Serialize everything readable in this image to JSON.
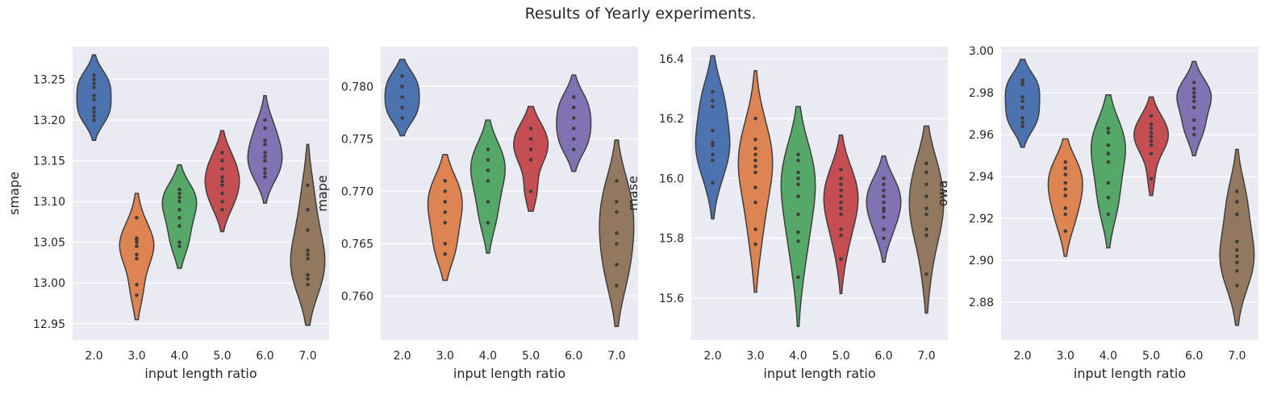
{
  "figure": {
    "title": "Results of Yearly experiments."
  },
  "chart_data": [
    {
      "type": "violin",
      "xlabel": "input length ratio",
      "ylabel": "smape",
      "categories": [
        "2.0",
        "3.0",
        "4.0",
        "5.0",
        "6.0",
        "7.0"
      ],
      "ylim": [
        12.93,
        13.29
      ],
      "yticks": [
        12.95,
        13.0,
        13.05,
        13.1,
        13.15,
        13.2,
        13.25
      ],
      "ytick_labels": [
        "12.95",
        "13.00",
        "13.05",
        "13.10",
        "13.15",
        "13.20",
        "13.25"
      ],
      "series": [
        {
          "category": "2.0",
          "color": "#4c72b0",
          "range": [
            13.175,
            13.28
          ],
          "points": [
            13.2,
            13.205,
            13.21,
            13.215,
            13.225,
            13.23,
            13.24,
            13.245,
            13.25,
            13.255
          ]
        },
        {
          "category": "3.0",
          "color": "#dd8452",
          "range": [
            12.955,
            13.11
          ],
          "points": [
            12.985,
            12.998,
            13.03,
            13.035,
            13.045,
            13.05,
            13.053,
            13.055,
            13.08
          ]
        },
        {
          "category": "4.0",
          "color": "#55a868",
          "range": [
            13.018,
            13.145
          ],
          "points": [
            13.045,
            13.05,
            13.07,
            13.08,
            13.09,
            13.1,
            13.105,
            13.11,
            13.115
          ]
        },
        {
          "category": "5.0",
          "color": "#c44e52",
          "range": [
            13.063,
            13.187
          ],
          "points": [
            13.09,
            13.1,
            13.11,
            13.12,
            13.125,
            13.13,
            13.14,
            13.15,
            13.16
          ]
        },
        {
          "category": "6.0",
          "color": "#8172b3",
          "range": [
            13.098,
            13.23
          ],
          "points": [
            13.13,
            13.135,
            13.14,
            13.15,
            13.155,
            13.16,
            13.17,
            13.175,
            13.19,
            13.2
          ]
        },
        {
          "category": "7.0",
          "color": "#937860",
          "range": [
            12.948,
            13.17
          ],
          "points": [
            12.998,
            13.005,
            13.01,
            13.03,
            13.035,
            13.04,
            13.065,
            13.09,
            13.12
          ]
        }
      ]
    },
    {
      "type": "violin",
      "xlabel": "input length ratio",
      "ylabel": "mape",
      "categories": [
        "2.0",
        "3.0",
        "4.0",
        "5.0",
        "6.0",
        "7.0"
      ],
      "ylim": [
        0.7558,
        0.7838
      ],
      "yticks": [
        0.76,
        0.765,
        0.77,
        0.775,
        0.78
      ],
      "ytick_labels": [
        "0.760",
        "0.765",
        "0.770",
        "0.775",
        "0.780"
      ],
      "series": [
        {
          "category": "2.0",
          "color": "#4c72b0",
          "range": [
            0.7753,
            0.7826
          ],
          "points": [
            0.777,
            0.778,
            0.779,
            0.78,
            0.781
          ]
        },
        {
          "category": "3.0",
          "color": "#dd8452",
          "range": [
            0.7615,
            0.7735
          ],
          "points": [
            0.764,
            0.765,
            0.767,
            0.768,
            0.769,
            0.77,
            0.771
          ]
        },
        {
          "category": "4.0",
          "color": "#55a868",
          "range": [
            0.7641,
            0.7768
          ],
          "points": [
            0.767,
            0.769,
            0.771,
            0.772,
            0.773,
            0.774
          ]
        },
        {
          "category": "5.0",
          "color": "#c44e52",
          "range": [
            0.7681,
            0.7781
          ],
          "points": [
            0.77,
            0.773,
            0.774,
            0.775,
            0.776
          ]
        },
        {
          "category": "6.0",
          "color": "#8172b3",
          "range": [
            0.7719,
            0.7811
          ],
          "points": [
            0.774,
            0.775,
            0.776,
            0.777,
            0.778,
            0.779
          ]
        },
        {
          "category": "7.0",
          "color": "#937860",
          "range": [
            0.7571,
            0.7749
          ],
          "points": [
            0.761,
            0.763,
            0.765,
            0.766,
            0.768,
            0.769,
            0.771
          ]
        }
      ]
    },
    {
      "type": "violin",
      "xlabel": "input length ratio",
      "ylabel": "mase",
      "categories": [
        "2.0",
        "3.0",
        "4.0",
        "5.0",
        "6.0",
        "7.0"
      ],
      "ylim": [
        15.46,
        16.44
      ],
      "yticks": [
        15.6,
        15.8,
        16.0,
        16.2,
        16.4
      ],
      "ytick_labels": [
        "15.6",
        "15.8",
        "16.0",
        "16.2",
        "16.4"
      ],
      "series": [
        {
          "category": "2.0",
          "color": "#4c72b0",
          "range": [
            15.865,
            16.41
          ],
          "points": [
            15.985,
            16.06,
            16.08,
            16.11,
            16.12,
            16.16,
            16.24,
            16.26,
            16.29
          ]
        },
        {
          "category": "3.0",
          "color": "#dd8452",
          "range": [
            15.62,
            16.36
          ],
          "points": [
            15.78,
            15.83,
            15.92,
            15.97,
            16.02,
            16.04,
            16.06,
            16.08,
            16.1,
            16.13,
            16.2
          ]
        },
        {
          "category": "4.0",
          "color": "#55a868",
          "range": [
            15.505,
            16.24
          ],
          "points": [
            15.67,
            15.79,
            15.82,
            15.88,
            15.94,
            15.98,
            16.0,
            16.02,
            16.06,
            16.08
          ]
        },
        {
          "category": "5.0",
          "color": "#c44e52",
          "range": [
            15.615,
            16.145
          ],
          "points": [
            15.73,
            15.81,
            15.83,
            15.88,
            15.9,
            15.92,
            15.94,
            15.96,
            15.98,
            16.0,
            16.03
          ]
        },
        {
          "category": "6.0",
          "color": "#8172b3",
          "range": [
            15.72,
            16.075
          ],
          "points": [
            15.8,
            15.83,
            15.87,
            15.89,
            15.9,
            15.92,
            15.94,
            15.96,
            15.98,
            16.0
          ]
        },
        {
          "category": "7.0",
          "color": "#937860",
          "range": [
            15.55,
            16.175
          ],
          "points": [
            15.68,
            15.81,
            15.83,
            15.88,
            15.9,
            15.94,
            15.98,
            16.02,
            16.05
          ]
        }
      ]
    },
    {
      "type": "violin",
      "xlabel": "input length ratio",
      "ylabel": "owa",
      "categories": [
        "2.0",
        "3.0",
        "4.0",
        "5.0",
        "6.0",
        "7.0"
      ],
      "ylim": [
        2.862,
        3.002
      ],
      "yticks": [
        2.88,
        2.9,
        2.92,
        2.94,
        2.96,
        2.98,
        3.0
      ],
      "ytick_labels": [
        "2.88",
        "2.90",
        "2.92",
        "2.94",
        "2.96",
        "2.98",
        "3.00"
      ],
      "series": [
        {
          "category": "2.0",
          "color": "#4c72b0",
          "range": [
            2.954,
            2.996
          ],
          "points": [
            2.964,
            2.966,
            2.968,
            2.973,
            2.976,
            2.978,
            2.984,
            2.985,
            2.986
          ]
        },
        {
          "category": "3.0",
          "color": "#dd8452",
          "range": [
            2.902,
            2.958
          ],
          "points": [
            2.914,
            2.922,
            2.925,
            2.931,
            2.934,
            2.937,
            2.941,
            2.944,
            2.947
          ]
        },
        {
          "category": "4.0",
          "color": "#55a868",
          "range": [
            2.906,
            2.979
          ],
          "points": [
            2.922,
            2.93,
            2.937,
            2.947,
            2.951,
            2.955,
            2.961,
            2.963
          ]
        },
        {
          "category": "5.0",
          "color": "#c44e52",
          "range": [
            2.931,
            2.978
          ],
          "points": [
            2.939,
            2.951,
            2.955,
            2.957,
            2.959,
            2.961,
            2.963,
            2.965,
            2.969
          ]
        },
        {
          "category": "6.0",
          "color": "#8172b3",
          "range": [
            2.95,
            2.995
          ],
          "points": [
            2.96,
            2.963,
            2.967,
            2.973,
            2.976,
            2.978,
            2.98,
            2.982,
            2.985
          ]
        },
        {
          "category": "7.0",
          "color": "#937860",
          "range": [
            2.869,
            2.953
          ],
          "points": [
            2.888,
            2.895,
            2.899,
            2.902,
            2.905,
            2.909,
            2.922,
            2.928,
            2.933
          ]
        }
      ]
    }
  ]
}
